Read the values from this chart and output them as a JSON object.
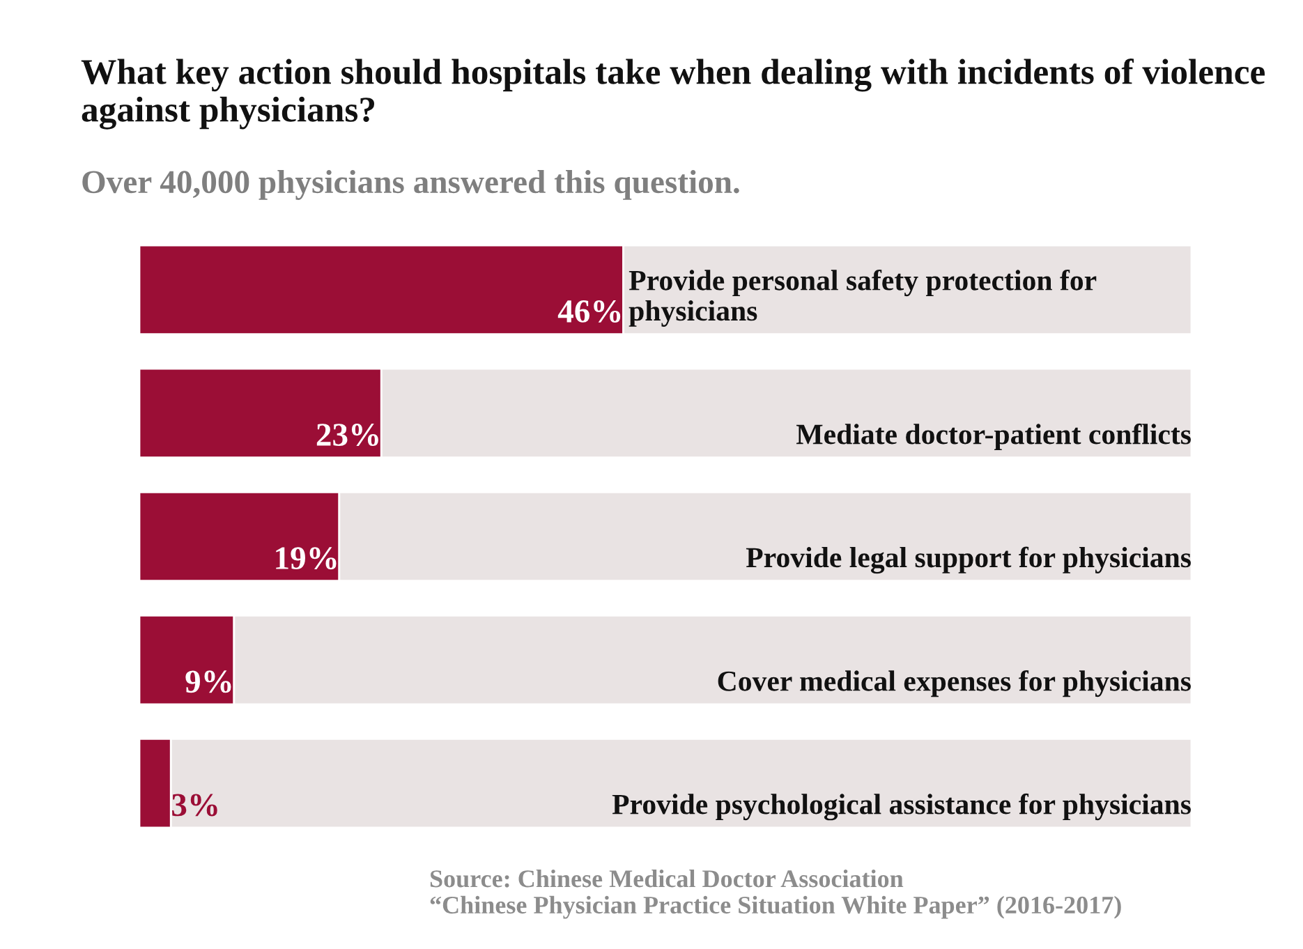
{
  "chart_data": {
    "type": "bar",
    "orientation": "horizontal",
    "stacked": true,
    "title": "What key action should hospitals take when dealing with incidents of violence against physicians?",
    "subtitle": "Over 40,000 physicians answered this question.",
    "categories": [
      "Provide personal safety protection for physicians",
      "Mediate doctor-patient conflicts",
      "Provide legal support for physicians",
      "Cover medical expenses for physicians",
      "Provide psychological assistance for physicians"
    ],
    "series": [
      {
        "color": "#9b0e36",
        "values": [
          46,
          23,
          19,
          9,
          3
        ],
        "value_labels": [
          "46%",
          "23%",
          "19%",
          "9%",
          "3%"
        ]
      },
      {
        "color": "#e9e3e3",
        "values": [
          54,
          77,
          81,
          91,
          97
        ]
      }
    ],
    "xlim": [
      0,
      100
    ],
    "annotations": [
      "Source: Chinese Medical Doctor Association\n“Chinese Physician Practice Situation White Paper” (2016-2017)"
    ]
  }
}
